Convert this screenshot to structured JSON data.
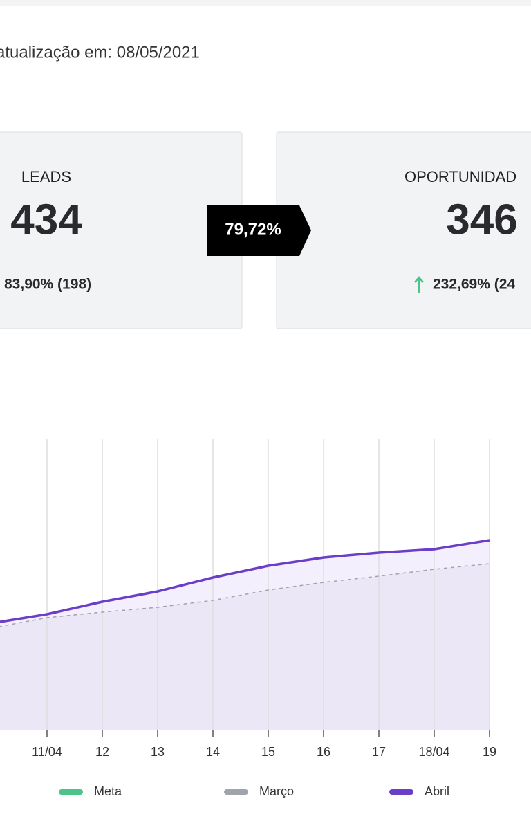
{
  "header": {
    "update": "atualização em: 08/05/2021"
  },
  "cards": [
    {
      "title": "LEADS",
      "value": "434",
      "change": "83,90% (198)"
    },
    {
      "title": "OPORTUNIDAD",
      "value": "346",
      "change": "232,69% (24"
    }
  ],
  "conversion": "79,72%",
  "chart_data": {
    "type": "area",
    "categories": [
      null,
      "11/04",
      "12",
      "13",
      "14",
      "15",
      "16",
      "17",
      "18/04",
      "19"
    ],
    "series": [
      {
        "name": "Meta",
        "color": "#4cc38a"
      },
      {
        "name": "Março",
        "color": "#a0a4ab",
        "fill": "#ece7f6",
        "dashed": true,
        "values": [
          147,
          162,
          170,
          177,
          187,
          202,
          213,
          222,
          232,
          240
        ]
      },
      {
        "name": "Abril",
        "color": "#6a3ec8",
        "fill": "#f4effd",
        "dashed": false,
        "values": [
          154,
          167,
          185,
          200,
          220,
          237,
          249,
          256,
          261,
          274
        ]
      }
    ],
    "ylim": [
      0,
      420
    ],
    "grid": true
  }
}
